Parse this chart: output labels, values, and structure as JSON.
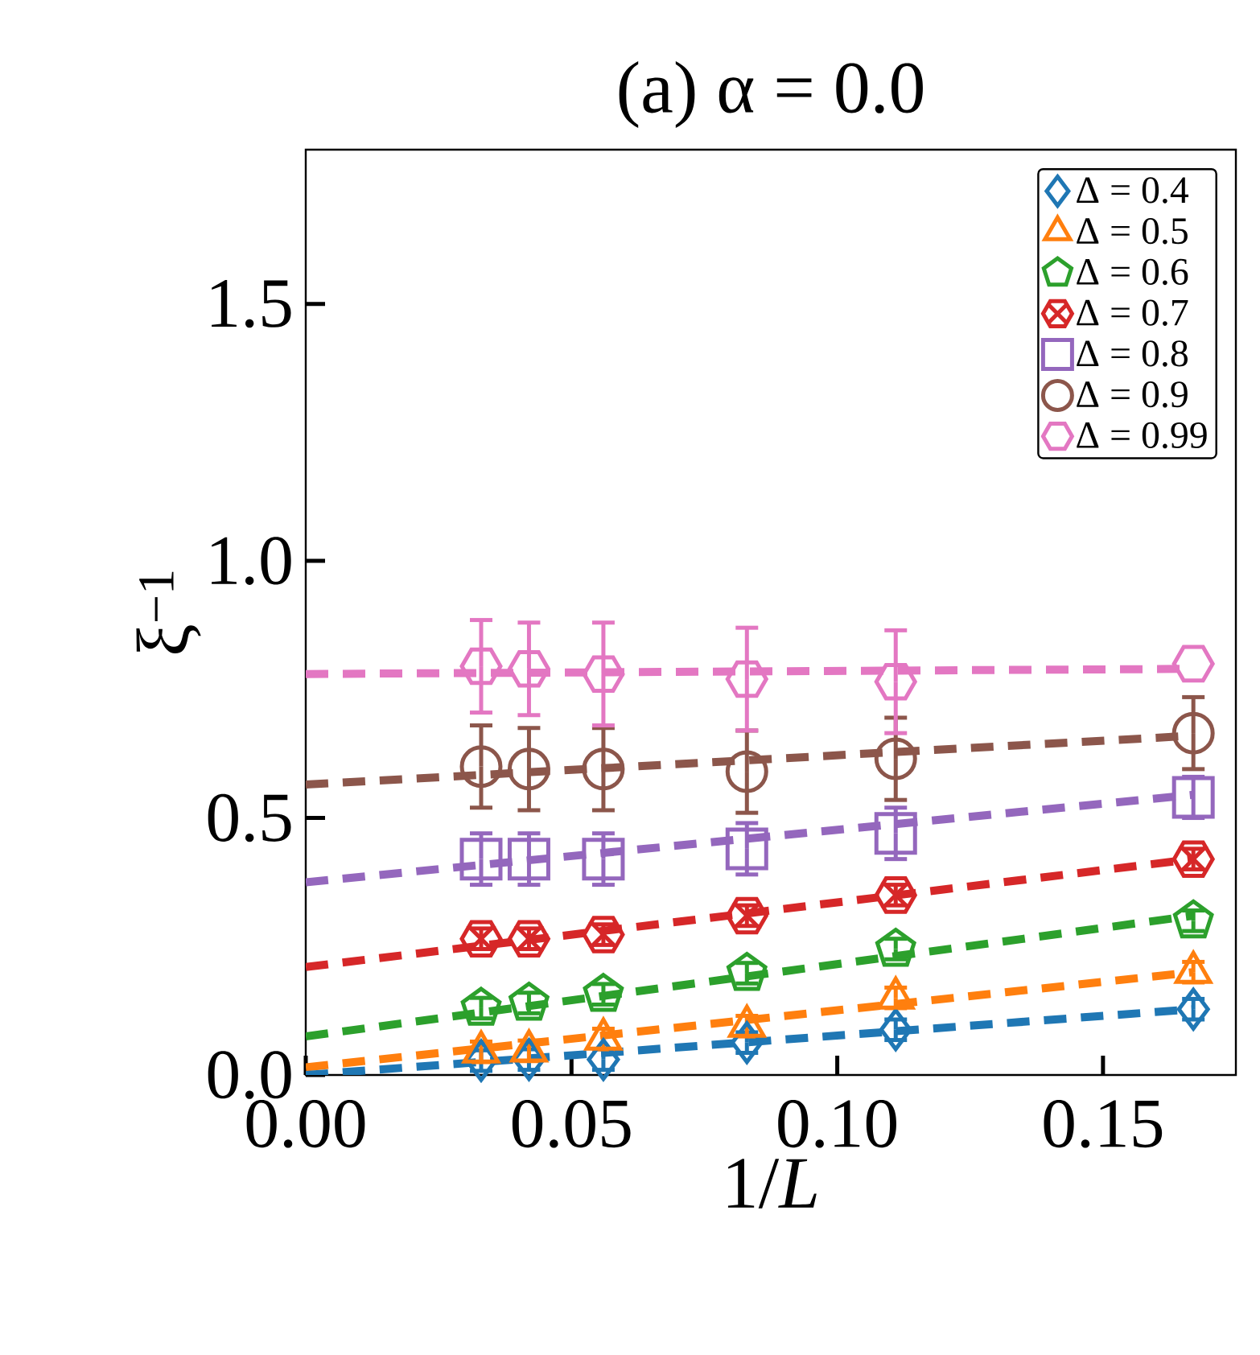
{
  "chart_data": {
    "type": "scatter",
    "title": "(a) α = 0.0",
    "xlabel": "1/*L*",
    "ylabel": "ξ$^{−1}$",
    "xlim": [
      0,
      0.175
    ],
    "ylim": [
      0,
      1.8
    ],
    "xticks": [
      {
        "value": 0,
        "label": "0.00"
      },
      {
        "value": 0.05,
        "label": "0.05"
      },
      {
        "value": 0.1,
        "label": "0.10"
      },
      {
        "value": 0.15,
        "label": "0.15"
      }
    ],
    "yticks": [
      {
        "value": 0,
        "label": "0.0"
      },
      {
        "value": 0.5,
        "label": "0.5"
      },
      {
        "value": 1.0,
        "label": "1.0"
      },
      {
        "value": 1.5,
        "label": "1.5"
      }
    ],
    "legend": "top right",
    "series": [
      {
        "name": "Δ = 0.4",
        "color": "#1f77b4",
        "marker": "diamond",
        "x": [
          0.033,
          0.042,
          0.056,
          0.083,
          0.111,
          0.167
        ],
        "values": [
          0.028,
          0.03,
          0.03,
          0.063,
          0.088,
          0.128
        ],
        "errors": [
          0.02,
          0.02,
          0.02,
          0.02,
          0.02,
          0.02
        ]
      },
      {
        "name": "Δ = 0.5",
        "color": "#ff7f0e",
        "marker": "triangle",
        "x": [
          0.033,
          0.042,
          0.056,
          0.083,
          0.111,
          0.167
        ],
        "values": [
          0.045,
          0.047,
          0.07,
          0.095,
          0.15,
          0.2
        ],
        "errors": [
          0.02,
          0.02,
          0.02,
          0.02,
          0.02,
          0.02
        ]
      },
      {
        "name": "Δ = 0.6",
        "color": "#2ca02c",
        "x": [
          0.033,
          0.042,
          0.056,
          0.083,
          0.111,
          0.167
        ],
        "values": [
          0.13,
          0.14,
          0.157,
          0.198,
          0.245,
          0.3
        ],
        "errors": [
          0.02,
          0.02,
          0.02,
          0.02,
          0.02,
          0.02
        ]
      },
      {
        "name": "Δ = 0.7",
        "color": "#d62728",
        "marker": "cross",
        "x": [
          0.033,
          0.042,
          0.056,
          0.083,
          0.111,
          0.167
        ],
        "values": [
          0.265,
          0.265,
          0.273,
          0.31,
          0.35,
          0.42
        ],
        "errors": [
          0.02,
          0.02,
          0.02,
          0.02,
          0.02,
          0.02
        ]
      },
      {
        "name": "Δ = 0.8",
        "color": "#9467bd",
        "marker": "square",
        "x": [
          0.033,
          0.042,
          0.056,
          0.083,
          0.111,
          0.167
        ],
        "values": [
          0.42,
          0.42,
          0.42,
          0.44,
          0.47,
          0.54
        ],
        "errors": [
          0.05,
          0.05,
          0.05,
          0.05,
          0.05,
          0.04
        ]
      },
      {
        "name": "Δ = 0.9",
        "color": "#8c564b",
        "marker": "circle",
        "x": [
          0.033,
          0.042,
          0.056,
          0.083,
          0.111,
          0.167
        ],
        "values": [
          0.6,
          0.595,
          0.595,
          0.59,
          0.615,
          0.665
        ],
        "errors": [
          0.08,
          0.08,
          0.08,
          0.08,
          0.08,
          0.07
        ]
      },
      {
        "name": "Δ = 0.99",
        "color": "#e377c2",
        "x": [
          0.033,
          0.042,
          0.056,
          0.083,
          0.111,
          0.167
        ],
        "values": [
          0.795,
          0.79,
          0.78,
          0.77,
          0.765,
          0.8
        ],
        "errors": [
          0.09,
          0.09,
          0.1,
          0.1,
          0.1,
          null
        ]
      },
      {
        "type": "line",
        "color": "#1f77b4",
        "line_style": "dashed",
        "x": [
          0,
          0.167
        ],
        "values": [
          0.0,
          0.128
        ]
      },
      {
        "type": "line",
        "color": "#ff7f0e",
        "line_style": "dashed",
        "x": [
          0,
          0.167
        ],
        "values": [
          0.015,
          0.2
        ]
      },
      {
        "type": "line",
        "color": "#2ca02c",
        "line_style": "dashed",
        "x": [
          0,
          0.167
        ],
        "values": [
          0.075,
          0.31
        ]
      },
      {
        "type": "line",
        "color": "#d62728",
        "line_style": "dashed",
        "x": [
          0,
          0.167
        ],
        "values": [
          0.21,
          0.42
        ]
      },
      {
        "type": "line",
        "color": "#9467bd",
        "line_style": "dashed",
        "x": [
          0,
          0.167
        ],
        "values": [
          0.375,
          0.545
        ]
      },
      {
        "type": "line",
        "color": "#8c564b",
        "line_style": "dashed",
        "x": [
          0,
          0.167
        ],
        "values": [
          0.565,
          0.66
        ]
      },
      {
        "type": "line",
        "color": "#e377c2",
        "line_style": "dashed",
        "x": [
          0,
          0.167
        ],
        "values": [
          0.78,
          0.79
        ]
      }
    ]
  }
}
